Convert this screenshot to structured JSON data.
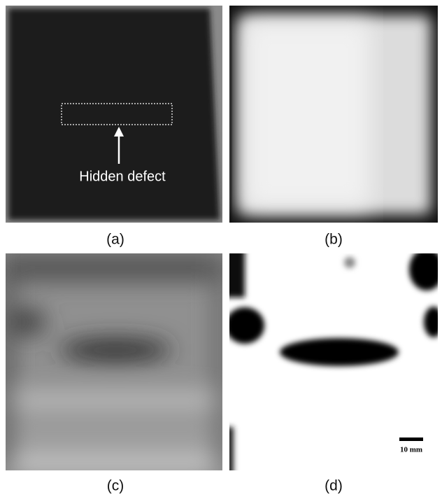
{
  "panels": [
    {
      "label": "(a)",
      "annotation": "Hidden defect"
    },
    {
      "label": "(b)"
    },
    {
      "label": "(c)"
    },
    {
      "label": "(d)",
      "scale_bar": "10 mm"
    }
  ]
}
